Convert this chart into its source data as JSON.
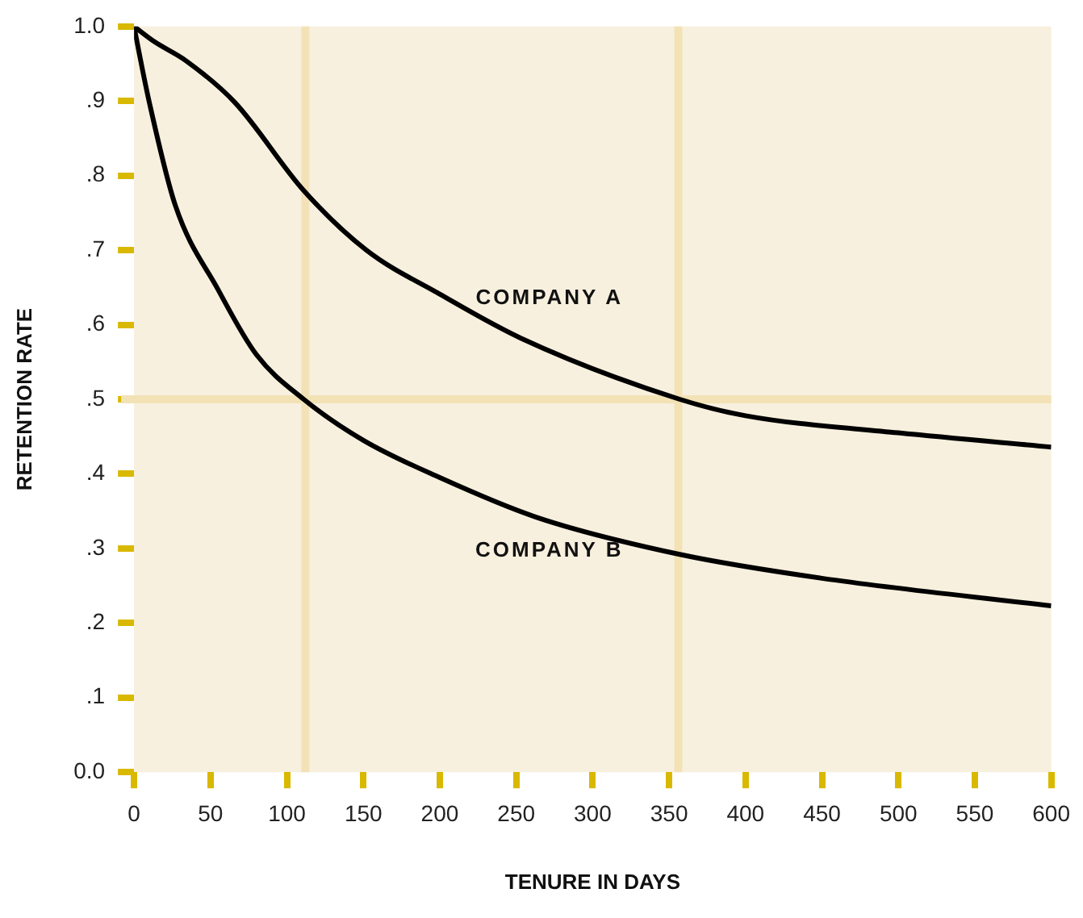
{
  "chart_data": {
    "type": "line",
    "xlabel": "TENURE IN DAYS",
    "ylabel": "RETENTION RATE",
    "series": [
      {
        "name": "COMPANY A",
        "color": "#000000",
        "x": [
          0,
          13,
          34,
          66,
          111,
          152,
          200,
          253,
          357,
          400,
          500,
          600
        ],
        "values": [
          1.0,
          0.98,
          0.954,
          0.898,
          0.78,
          0.7,
          0.641,
          0.582,
          0.5,
          0.478,
          0.455,
          0.436
        ]
      },
      {
        "name": "COMPANY B",
        "color": "#000000",
        "x": [
          0,
          3,
          10,
          27,
          55,
          80,
          111,
          150,
          200,
          263,
          357,
          450,
          600
        ],
        "values": [
          1.0,
          0.968,
          0.898,
          0.76,
          0.647,
          0.56,
          0.5,
          0.445,
          0.395,
          0.342,
          0.292,
          0.26,
          0.223
        ]
      }
    ],
    "xlim": [
      0,
      600
    ],
    "xticks": [
      0,
      50,
      100,
      150,
      200,
      250,
      300,
      350,
      400,
      450,
      500,
      550,
      600
    ],
    "ylim": [
      0,
      1
    ],
    "yticks": [
      {
        "value": 0,
        "label": "0.0"
      },
      {
        "value": 0.1,
        "label": ".1"
      },
      {
        "value": 0.2,
        "label": ".2"
      },
      {
        "value": 0.3,
        "label": ".3"
      },
      {
        "value": 0.4,
        "label": ".4"
      },
      {
        "value": 0.5,
        "label": ".5"
      },
      {
        "value": 0.6,
        "label": ".6"
      },
      {
        "value": 0.7,
        "label": ".7"
      },
      {
        "value": 0.8,
        "label": ".8"
      },
      {
        "value": 0.9,
        "label": ".9"
      },
      {
        "value": 1,
        "label": "1.0"
      }
    ],
    "ref_lines": [
      {
        "axis": "x",
        "value": 112,
        "color": "#f2e2b6"
      },
      {
        "axis": "x",
        "value": 356,
        "color": "#f2e2b6"
      },
      {
        "axis": "y",
        "value": 0.5,
        "color": "#f2e2b6"
      }
    ],
    "grid": false,
    "legend": false,
    "marker": "none",
    "line_style": "solid"
  }
}
